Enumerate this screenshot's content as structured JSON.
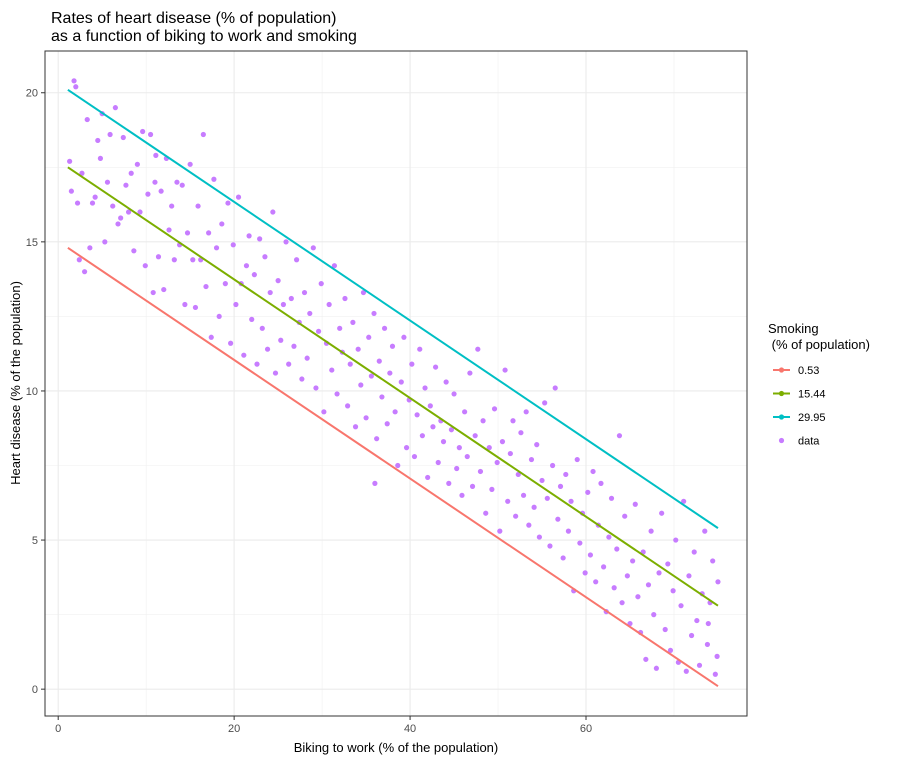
{
  "chart_data": {
    "type": "scatter",
    "title": [
      "Rates of heart disease (% of population)",
      "as a function of biking to work and smoking"
    ],
    "xlabel": "Biking to work (% of the population)",
    "ylabel": "Heart disease (% of the population)",
    "xlim": [
      -1.5,
      78.3
    ],
    "ylim": [
      -0.9,
      21.4
    ],
    "x_ticks": [
      0,
      20,
      40,
      60
    ],
    "y_ticks": [
      0,
      5,
      10,
      15,
      20
    ],
    "grid": true,
    "legend": {
      "title": [
        "Smoking",
        " (% of population)"
      ],
      "position": "right",
      "entries": [
        "0.53",
        "15.44",
        "29.95",
        "data"
      ]
    },
    "lines": [
      {
        "name": "0.53",
        "color": "#F8766D",
        "x": [
          1.1,
          75.0
        ],
        "y": [
          14.8,
          0.1
        ]
      },
      {
        "name": "15.44",
        "color": "#7CAE00",
        "x": [
          1.1,
          75.0
        ],
        "y": [
          17.5,
          2.8
        ]
      },
      {
        "name": "29.95",
        "color": "#00BFC4",
        "x": [
          1.1,
          75.0
        ],
        "y": [
          20.1,
          5.4
        ]
      }
    ],
    "scatter": {
      "name": "data",
      "color": "#C77CFF",
      "points": [
        [
          1.3,
          17.7
        ],
        [
          1.5,
          16.7
        ],
        [
          1.8,
          20.4
        ],
        [
          2.0,
          20.2
        ],
        [
          2.2,
          16.3
        ],
        [
          2.4,
          14.4
        ],
        [
          2.7,
          17.3
        ],
        [
          3.0,
          14.0
        ],
        [
          3.3,
          19.1
        ],
        [
          3.6,
          14.8
        ],
        [
          3.9,
          16.3
        ],
        [
          4.2,
          16.5
        ],
        [
          4.5,
          18.4
        ],
        [
          4.8,
          17.8
        ],
        [
          5.0,
          19.3
        ],
        [
          5.3,
          15.0
        ],
        [
          5.6,
          17.0
        ],
        [
          5.9,
          18.6
        ],
        [
          6.2,
          16.2
        ],
        [
          6.5,
          19.5
        ],
        [
          6.8,
          15.6
        ],
        [
          7.1,
          15.8
        ],
        [
          7.4,
          18.5
        ],
        [
          7.7,
          16.9
        ],
        [
          8.0,
          16.0
        ],
        [
          8.3,
          17.3
        ],
        [
          8.6,
          14.7
        ],
        [
          9.0,
          17.6
        ],
        [
          9.3,
          16.0
        ],
        [
          9.6,
          18.7
        ],
        [
          9.9,
          14.2
        ],
        [
          10.2,
          16.6
        ],
        [
          10.5,
          18.6
        ],
        [
          10.8,
          13.3
        ],
        [
          11.1,
          17.9
        ],
        [
          11.4,
          14.5
        ],
        [
          11.7,
          16.7
        ],
        [
          12.0,
          13.4
        ],
        [
          12.3,
          17.8
        ],
        [
          12.6,
          15.4
        ],
        [
          12.9,
          16.2
        ],
        [
          13.2,
          14.4
        ],
        [
          13.5,
          17.0
        ],
        [
          13.8,
          14.9
        ],
        [
          14.1,
          16.9
        ],
        [
          14.4,
          12.9
        ],
        [
          14.7,
          15.3
        ],
        [
          15.0,
          17.6
        ],
        [
          15.3,
          14.4
        ],
        [
          15.6,
          12.8
        ],
        [
          15.9,
          16.2
        ],
        [
          16.2,
          14.4
        ],
        [
          16.5,
          18.6
        ],
        [
          16.8,
          13.5
        ],
        [
          17.1,
          15.3
        ],
        [
          17.4,
          11.8
        ],
        [
          17.7,
          17.1
        ],
        [
          18.0,
          14.8
        ],
        [
          18.3,
          12.5
        ],
        [
          18.6,
          15.6
        ],
        [
          19.0,
          13.6
        ],
        [
          19.3,
          16.3
        ],
        [
          19.6,
          11.6
        ],
        [
          19.9,
          14.9
        ],
        [
          20.2,
          12.9
        ],
        [
          20.5,
          16.5
        ],
        [
          20.8,
          13.6
        ],
        [
          21.1,
          11.2
        ],
        [
          21.4,
          14.2
        ],
        [
          21.7,
          15.2
        ],
        [
          22.0,
          12.4
        ],
        [
          22.3,
          13.9
        ],
        [
          22.6,
          10.9
        ],
        [
          22.9,
          15.1
        ],
        [
          23.2,
          12.1
        ],
        [
          23.5,
          14.5
        ],
        [
          23.8,
          11.4
        ],
        [
          24.1,
          13.3
        ],
        [
          24.4,
          16.0
        ],
        [
          24.7,
          10.6
        ],
        [
          25.0,
          13.7
        ],
        [
          25.3,
          11.7
        ],
        [
          25.6,
          12.9
        ],
        [
          25.9,
          15.0
        ],
        [
          26.2,
          10.9
        ],
        [
          26.5,
          13.1
        ],
        [
          26.8,
          11.5
        ],
        [
          27.1,
          14.4
        ],
        [
          27.4,
          12.3
        ],
        [
          27.7,
          10.4
        ],
        [
          28.0,
          13.3
        ],
        [
          28.3,
          11.1
        ],
        [
          28.6,
          12.6
        ],
        [
          29.0,
          14.8
        ],
        [
          29.3,
          10.1
        ],
        [
          29.6,
          12.0
        ],
        [
          29.9,
          13.6
        ],
        [
          30.2,
          9.3
        ],
        [
          30.5,
          11.6
        ],
        [
          30.8,
          12.9
        ],
        [
          31.1,
          10.7
        ],
        [
          31.4,
          14.2
        ],
        [
          31.7,
          9.9
        ],
        [
          32.0,
          12.1
        ],
        [
          32.3,
          11.3
        ],
        [
          32.6,
          13.1
        ],
        [
          32.9,
          9.5
        ],
        [
          33.2,
          10.9
        ],
        [
          33.5,
          12.3
        ],
        [
          33.8,
          8.8
        ],
        [
          34.1,
          11.4
        ],
        [
          34.4,
          10.2
        ],
        [
          34.7,
          13.3
        ],
        [
          35.0,
          9.1
        ],
        [
          35.3,
          11.8
        ],
        [
          35.6,
          10.5
        ],
        [
          35.9,
          12.6
        ],
        [
          36.2,
          8.4
        ],
        [
          36.5,
          11.0
        ],
        [
          36.8,
          9.8
        ],
        [
          37.1,
          12.1
        ],
        [
          37.4,
          8.9
        ],
        [
          37.7,
          10.6
        ],
        [
          38.0,
          11.5
        ],
        [
          38.3,
          9.3
        ],
        [
          38.6,
          7.5
        ],
        [
          39.0,
          10.3
        ],
        [
          39.3,
          11.8
        ],
        [
          39.6,
          8.1
        ],
        [
          39.9,
          9.7
        ],
        [
          40.2,
          10.9
        ],
        [
          40.5,
          7.8
        ],
        [
          40.8,
          9.2
        ],
        [
          41.1,
          11.4
        ],
        [
          41.4,
          8.5
        ],
        [
          41.7,
          10.1
        ],
        [
          42.0,
          7.1
        ],
        [
          42.3,
          9.5
        ],
        [
          42.6,
          8.8
        ],
        [
          42.9,
          10.8
        ],
        [
          43.2,
          7.6
        ],
        [
          43.5,
          9.0
        ],
        [
          43.8,
          8.3
        ],
        [
          44.1,
          10.3
        ],
        [
          44.4,
          6.9
        ],
        [
          44.7,
          8.7
        ],
        [
          45.0,
          9.9
        ],
        [
          45.3,
          7.4
        ],
        [
          45.6,
          8.1
        ],
        [
          45.9,
          6.5
        ],
        [
          46.2,
          9.3
        ],
        [
          46.5,
          7.8
        ],
        [
          46.8,
          10.6
        ],
        [
          47.1,
          6.8
        ],
        [
          47.4,
          8.5
        ],
        [
          47.7,
          11.4
        ],
        [
          48.0,
          7.3
        ],
        [
          48.3,
          9.0
        ],
        [
          48.6,
          5.9
        ],
        [
          49.0,
          8.1
        ],
        [
          49.3,
          6.7
        ],
        [
          49.6,
          9.4
        ],
        [
          49.9,
          7.6
        ],
        [
          50.2,
          5.3
        ],
        [
          50.5,
          8.3
        ],
        [
          50.8,
          10.7
        ],
        [
          51.1,
          6.3
        ],
        [
          51.4,
          7.9
        ],
        [
          51.7,
          9.0
        ],
        [
          52.0,
          5.8
        ],
        [
          52.3,
          7.2
        ],
        [
          52.6,
          8.6
        ],
        [
          52.9,
          6.5
        ],
        [
          53.2,
          9.3
        ],
        [
          53.5,
          5.5
        ],
        [
          53.8,
          7.7
        ],
        [
          54.1,
          6.1
        ],
        [
          54.4,
          8.2
        ],
        [
          54.7,
          5.1
        ],
        [
          55.0,
          7.0
        ],
        [
          55.3,
          9.6
        ],
        [
          55.6,
          6.4
        ],
        [
          55.9,
          4.8
        ],
        [
          56.2,
          7.5
        ],
        [
          56.5,
          10.1
        ],
        [
          56.8,
          5.7
        ],
        [
          57.1,
          6.8
        ],
        [
          57.4,
          4.4
        ],
        [
          57.7,
          7.2
        ],
        [
          58.0,
          5.3
        ],
        [
          58.3,
          6.3
        ],
        [
          58.6,
          3.3
        ],
        [
          59.0,
          7.7
        ],
        [
          59.3,
          4.9
        ],
        [
          59.6,
          5.9
        ],
        [
          59.9,
          3.9
        ],
        [
          60.2,
          6.6
        ],
        [
          60.5,
          4.5
        ],
        [
          60.8,
          7.3
        ],
        [
          61.1,
          3.6
        ],
        [
          61.4,
          5.5
        ],
        [
          61.7,
          6.9
        ],
        [
          62.0,
          4.1
        ],
        [
          62.3,
          2.6
        ],
        [
          62.6,
          5.1
        ],
        [
          62.9,
          6.4
        ],
        [
          63.2,
          3.4
        ],
        [
          63.5,
          4.7
        ],
        [
          63.8,
          8.5
        ],
        [
          64.1,
          2.9
        ],
        [
          64.4,
          5.8
        ],
        [
          64.7,
          3.8
        ],
        [
          65.0,
          2.2
        ],
        [
          65.3,
          4.3
        ],
        [
          65.6,
          6.2
        ],
        [
          65.9,
          3.1
        ],
        [
          66.2,
          1.9
        ],
        [
          66.5,
          4.6
        ],
        [
          66.8,
          1.0
        ],
        [
          67.1,
          3.5
        ],
        [
          67.4,
          5.3
        ],
        [
          67.7,
          2.5
        ],
        [
          68.0,
          0.7
        ],
        [
          68.3,
          3.9
        ],
        [
          68.6,
          5.9
        ],
        [
          69.0,
          2.0
        ],
        [
          69.3,
          4.2
        ],
        [
          69.6,
          1.3
        ],
        [
          69.9,
          3.3
        ],
        [
          70.2,
          5.0
        ],
        [
          70.5,
          0.9
        ],
        [
          70.8,
          2.8
        ],
        [
          71.1,
          6.3
        ],
        [
          71.4,
          0.6
        ],
        [
          71.7,
          3.8
        ],
        [
          72.0,
          1.8
        ],
        [
          72.3,
          4.6
        ],
        [
          72.6,
          2.3
        ],
        [
          72.9,
          0.8
        ],
        [
          73.2,
          3.2
        ],
        [
          73.5,
          5.3
        ],
        [
          73.8,
          1.5
        ],
        [
          74.1,
          2.9
        ],
        [
          74.4,
          4.3
        ],
        [
          74.7,
          0.5
        ],
        [
          75.0,
          3.6
        ],
        [
          74.9,
          1.1
        ],
        [
          73.9,
          2.2
        ],
        [
          11.0,
          17.0
        ],
        [
          36.0,
          6.9
        ]
      ]
    }
  }
}
